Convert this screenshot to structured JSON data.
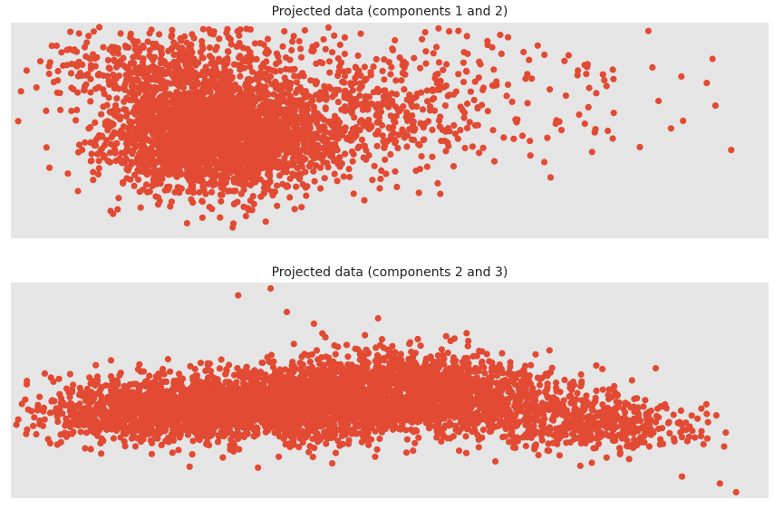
{
  "colors": {
    "point": "#e24a33",
    "plot_bg": "#e5e5e5"
  },
  "chart_data": [
    {
      "type": "scatter",
      "title": "Projected data (components 1 and 2)",
      "xlabel": "",
      "ylabel": "",
      "xlim": [
        -4.5,
        32
      ],
      "ylim": [
        -11,
        11
      ],
      "grid": false,
      "series": [
        {
          "core_clusters": [
            {
              "cx": 5.5,
              "cy": -0.5,
              "sx": 2.6,
              "sy": 2.8,
              "n": 2600
            },
            {
              "cx": 3.5,
              "cy": 6.5,
              "sx": 3.0,
              "sy": 2.2,
              "n": 500
            },
            {
              "cx": 13.0,
              "cy": 2.0,
              "sx": 3.0,
              "sy": 3.5,
              "n": 450
            },
            {
              "cx": 20.0,
              "cy": 3.0,
              "sx": 4.5,
              "sy": 3.0,
              "n": 80
            }
          ],
          "points": [
            {
              "x": -2.8,
              "y": 2.0
            },
            {
              "x": 30.2,
              "y": -2.0
            },
            {
              "x": 17.7,
              "y": 10.7
            },
            {
              "x": 24.5,
              "y": 6.2
            },
            {
              "x": 27.8,
              "y": 5.5
            },
            {
              "x": 29.3,
              "y": 7.3
            },
            {
              "x": 21.5,
              "y": -4.8
            },
            {
              "x": 26.7,
              "y": 3.0
            },
            {
              "x": 27.3,
              "y": 0.2
            },
            {
              "x": 25.8,
              "y": -1.7
            },
            {
              "x": 23.5,
              "y": -2.2
            },
            {
              "x": 23.7,
              "y": 3.8
            },
            {
              "x": 20.2,
              "y": 8.0
            },
            {
              "x": 10.8,
              "y": 10.5
            },
            {
              "x": 14.0,
              "y": 9.2
            },
            {
              "x": 16.0,
              "y": 8.5
            }
          ]
        }
      ]
    },
    {
      "type": "scatter",
      "title": "Projected data (components 2 and 3)",
      "xlabel": "",
      "ylabel": "",
      "xlim": [
        -5.5,
        8.5
      ],
      "ylim": [
        -11,
        11
      ],
      "grid": false,
      "series": [
        {
          "core_clusters": [
            {
              "cx": -2.5,
              "cy": -2.0,
              "sx": 1.1,
              "sy": 1.6,
              "n": 1500
            },
            {
              "cx": 0.0,
              "cy": -1.0,
              "sx": 1.0,
              "sy": 2.0,
              "n": 1300
            },
            {
              "cx": 1.8,
              "cy": 0.2,
              "sx": 1.0,
              "sy": 2.0,
              "n": 1100
            },
            {
              "cx": 3.5,
              "cy": -1.5,
              "sx": 1.0,
              "sy": 1.8,
              "n": 550
            },
            {
              "cx": 5.5,
              "cy": -3.5,
              "sx": 0.8,
              "sy": 1.3,
              "n": 350
            }
          ],
          "points": [
            {
              "x": -1.3,
              "y": 9.7
            },
            {
              "x": -0.7,
              "y": 10.4
            },
            {
              "x": -0.4,
              "y": 8.0
            },
            {
              "x": 0.1,
              "y": 6.8
            },
            {
              "x": 7.9,
              "y": -10.4
            },
            {
              "x": 7.6,
              "y": -9.5
            },
            {
              "x": 6.9,
              "y": -8.8
            },
            {
              "x": 6.5,
              "y": -5.0
            },
            {
              "x": 7.3,
              "y": -5.5
            },
            {
              "x": -5.2,
              "y": -4.0
            },
            {
              "x": -5.0,
              "y": -1.5
            }
          ]
        }
      ]
    }
  ]
}
